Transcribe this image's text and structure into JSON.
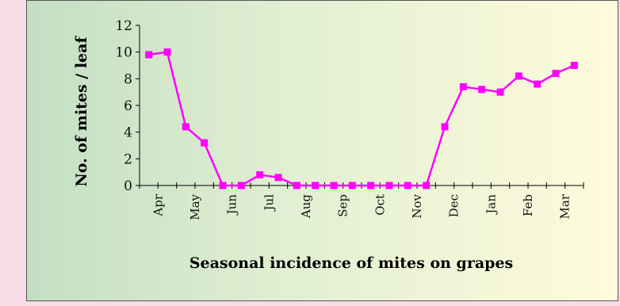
{
  "chart_data": {
    "type": "line",
    "xlabel": "Seasonal incidence of mites on grapes",
    "ylabel": "No. of mites / leaf",
    "ylim": [
      0,
      12
    ],
    "yticks": [
      0,
      2,
      4,
      6,
      8,
      10,
      12
    ],
    "month_labels": [
      "Apr",
      "May",
      "Jun",
      "Jul",
      "Aug",
      "Sep",
      "Oct",
      "Nov",
      "Dec",
      "Jan",
      "Feb",
      "Mar"
    ],
    "series": [
      {
        "color": "#ff00ff",
        "marker": "square",
        "values": [
          9.8,
          10.0,
          4.4,
          3.2,
          0,
          0,
          0.8,
          0.6,
          0,
          0,
          0,
          0,
          0,
          0,
          0,
          0,
          4.4,
          7.4,
          7.2,
          7.0,
          8.2,
          7.6,
          8.4,
          9.0
        ]
      }
    ],
    "grid": false,
    "legend": "none"
  }
}
